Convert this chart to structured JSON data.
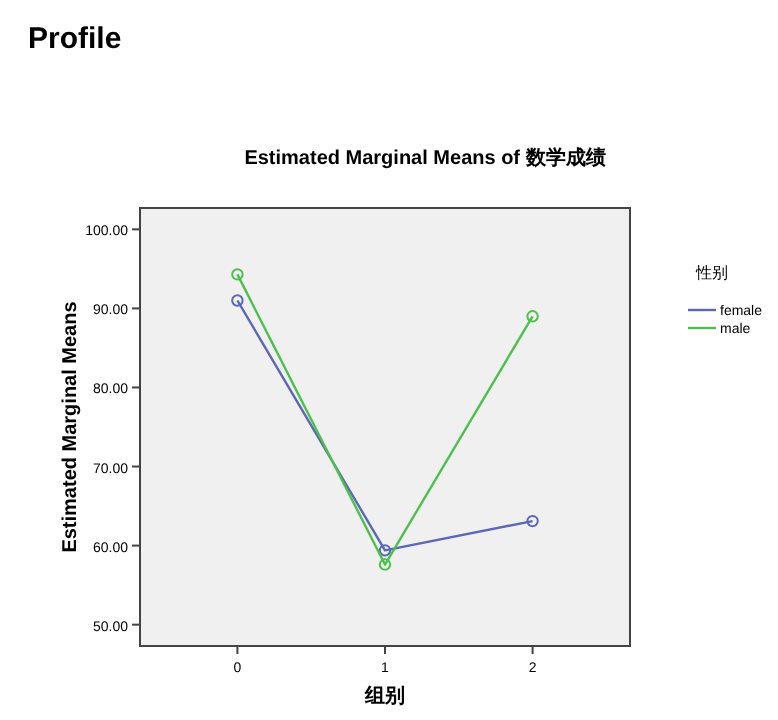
{
  "chart_data": {
    "type": "line",
    "title": "Profile",
    "subtitle": "Estimated Marginal Means of 数学成绩",
    "xlabel": "组别",
    "ylabel": "Estimated Marginal Means",
    "legend_title": "性别",
    "categories": [
      "0",
      "1",
      "2"
    ],
    "series": [
      {
        "name": "female",
        "color": "#5a68b8",
        "values": [
          91.0,
          59.4,
          63.1
        ]
      },
      {
        "name": "male",
        "color": "#4cc14c",
        "values": [
          94.3,
          57.6,
          89.0
        ]
      }
    ],
    "ylim": [
      47.3,
      102.7
    ],
    "yticks": [
      {
        "value": 50,
        "label": "50.00"
      },
      {
        "value": 60,
        "label": "60.00"
      },
      {
        "value": 70,
        "label": "70.00"
      },
      {
        "value": 80,
        "label": "80.00"
      },
      {
        "value": 90,
        "label": "90.00"
      },
      {
        "value": 100,
        "label": "100.00"
      }
    ],
    "marker": "circle",
    "line_style": "solid",
    "legend": "right",
    "grid": false
  }
}
